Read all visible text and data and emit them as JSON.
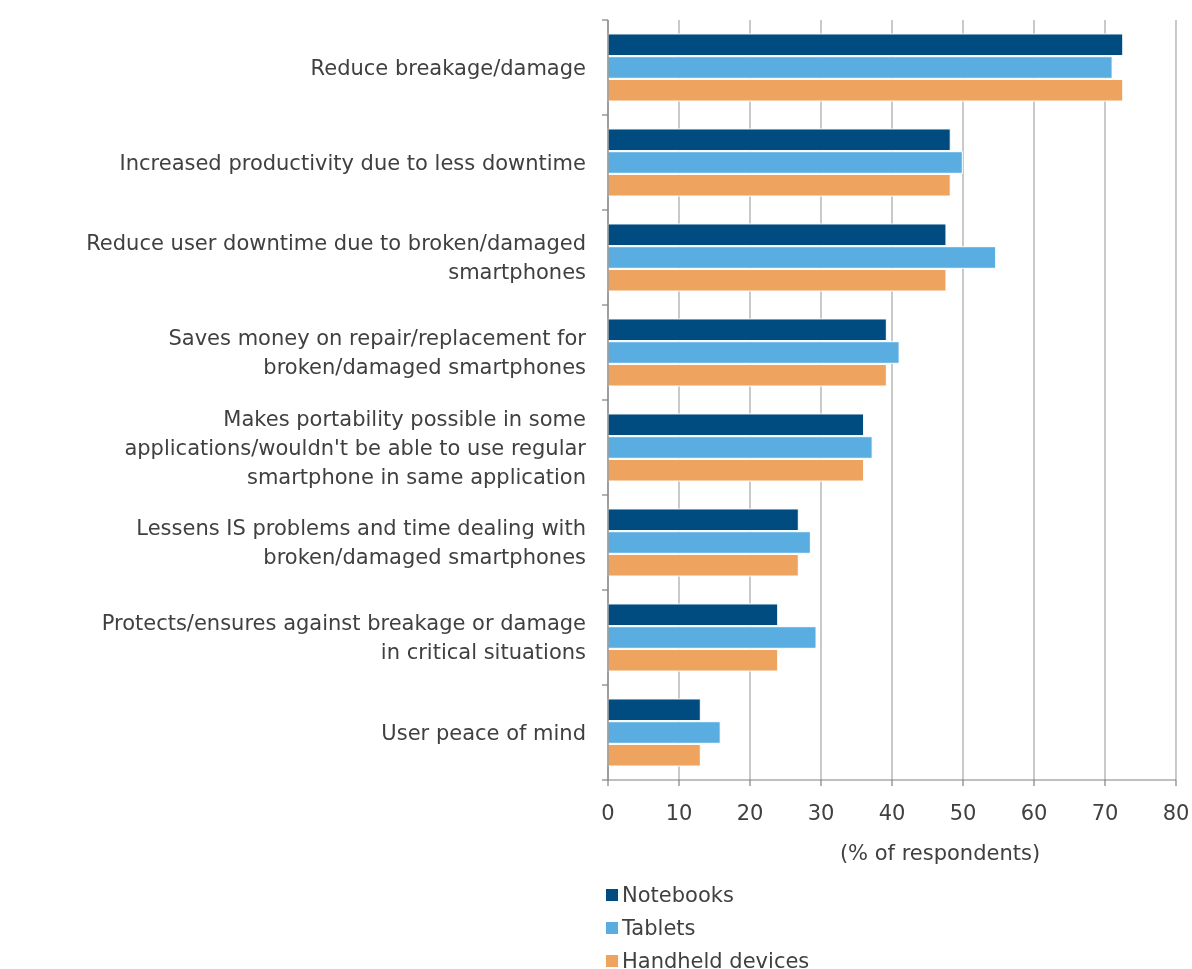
{
  "chart_data": {
    "type": "bar",
    "orientation": "horizontal",
    "xlabel": "(% of respondents)",
    "categories": [
      "Reduce breakage/damage",
      "Increased productivity due to less downtime",
      "Reduce user downtime due to broken/damaged smartphones",
      "Saves money on repair/replacement for broken/damaged smartphones",
      "Makes portability possible in some applications/wouldn't be able to use regular smartphone in same application",
      "Lessens IS problems and time dealing with broken/damaged smartphones",
      "Protects/ensures against breakage or damage in critical situations",
      "User peace of mind"
    ],
    "series": [
      {
        "name": "Notebooks",
        "color": "#004b80",
        "values": [
          72.5,
          48.2,
          47.6,
          39.2,
          36,
          26.8,
          23.9,
          13
        ]
      },
      {
        "name": "Tablets",
        "color": "#5aade0",
        "values": [
          71,
          49.9,
          54.6,
          41,
          37.2,
          28.5,
          29.3,
          15.8
        ]
      },
      {
        "name": "Handheld devices",
        "color": "#eea45e",
        "values": [
          72.5,
          48.2,
          47.6,
          39.2,
          36,
          26.8,
          23.9,
          13
        ]
      }
    ],
    "xlim": [
      0,
      80
    ],
    "xticks": [
      0,
      10,
      20,
      30,
      40,
      50,
      60,
      70,
      80
    ],
    "grid": "x",
    "legend": "bottom"
  }
}
